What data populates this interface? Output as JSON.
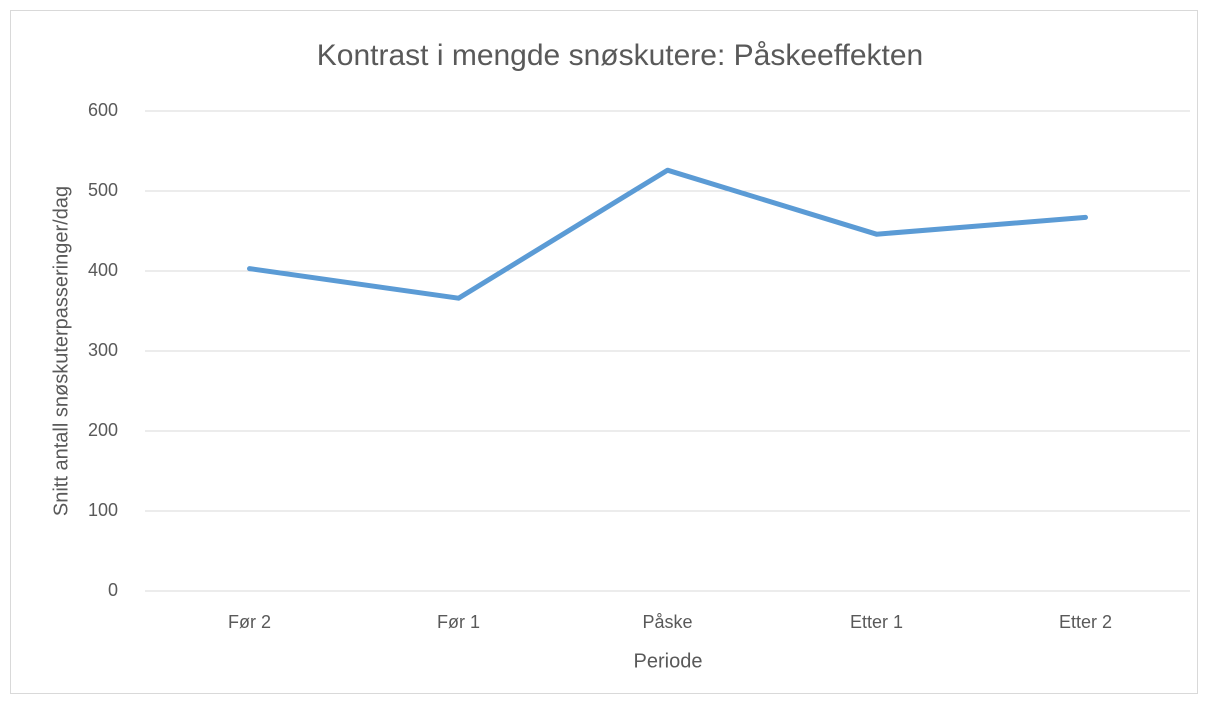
{
  "chart_data": {
    "type": "line",
    "title": "Kontrast i mengde snøskutere: Påskeeffekten",
    "x_label": "Periode",
    "y_label": "Snitt antall snøskuterpasseringer/dag",
    "categories": [
      "Før 2",
      "Før 1",
      "Påske",
      "Etter 1",
      "Etter 2"
    ],
    "series": [
      {
        "name": "Snitt antall snøskuterpasseringer/dag",
        "color": "#5b9bd5",
        "values": [
          403,
          366,
          526,
          446,
          467
        ]
      }
    ],
    "ylim": [
      0,
      600
    ],
    "yticks": [
      0,
      100,
      200,
      300,
      400,
      500,
      600
    ],
    "grid": true
  }
}
